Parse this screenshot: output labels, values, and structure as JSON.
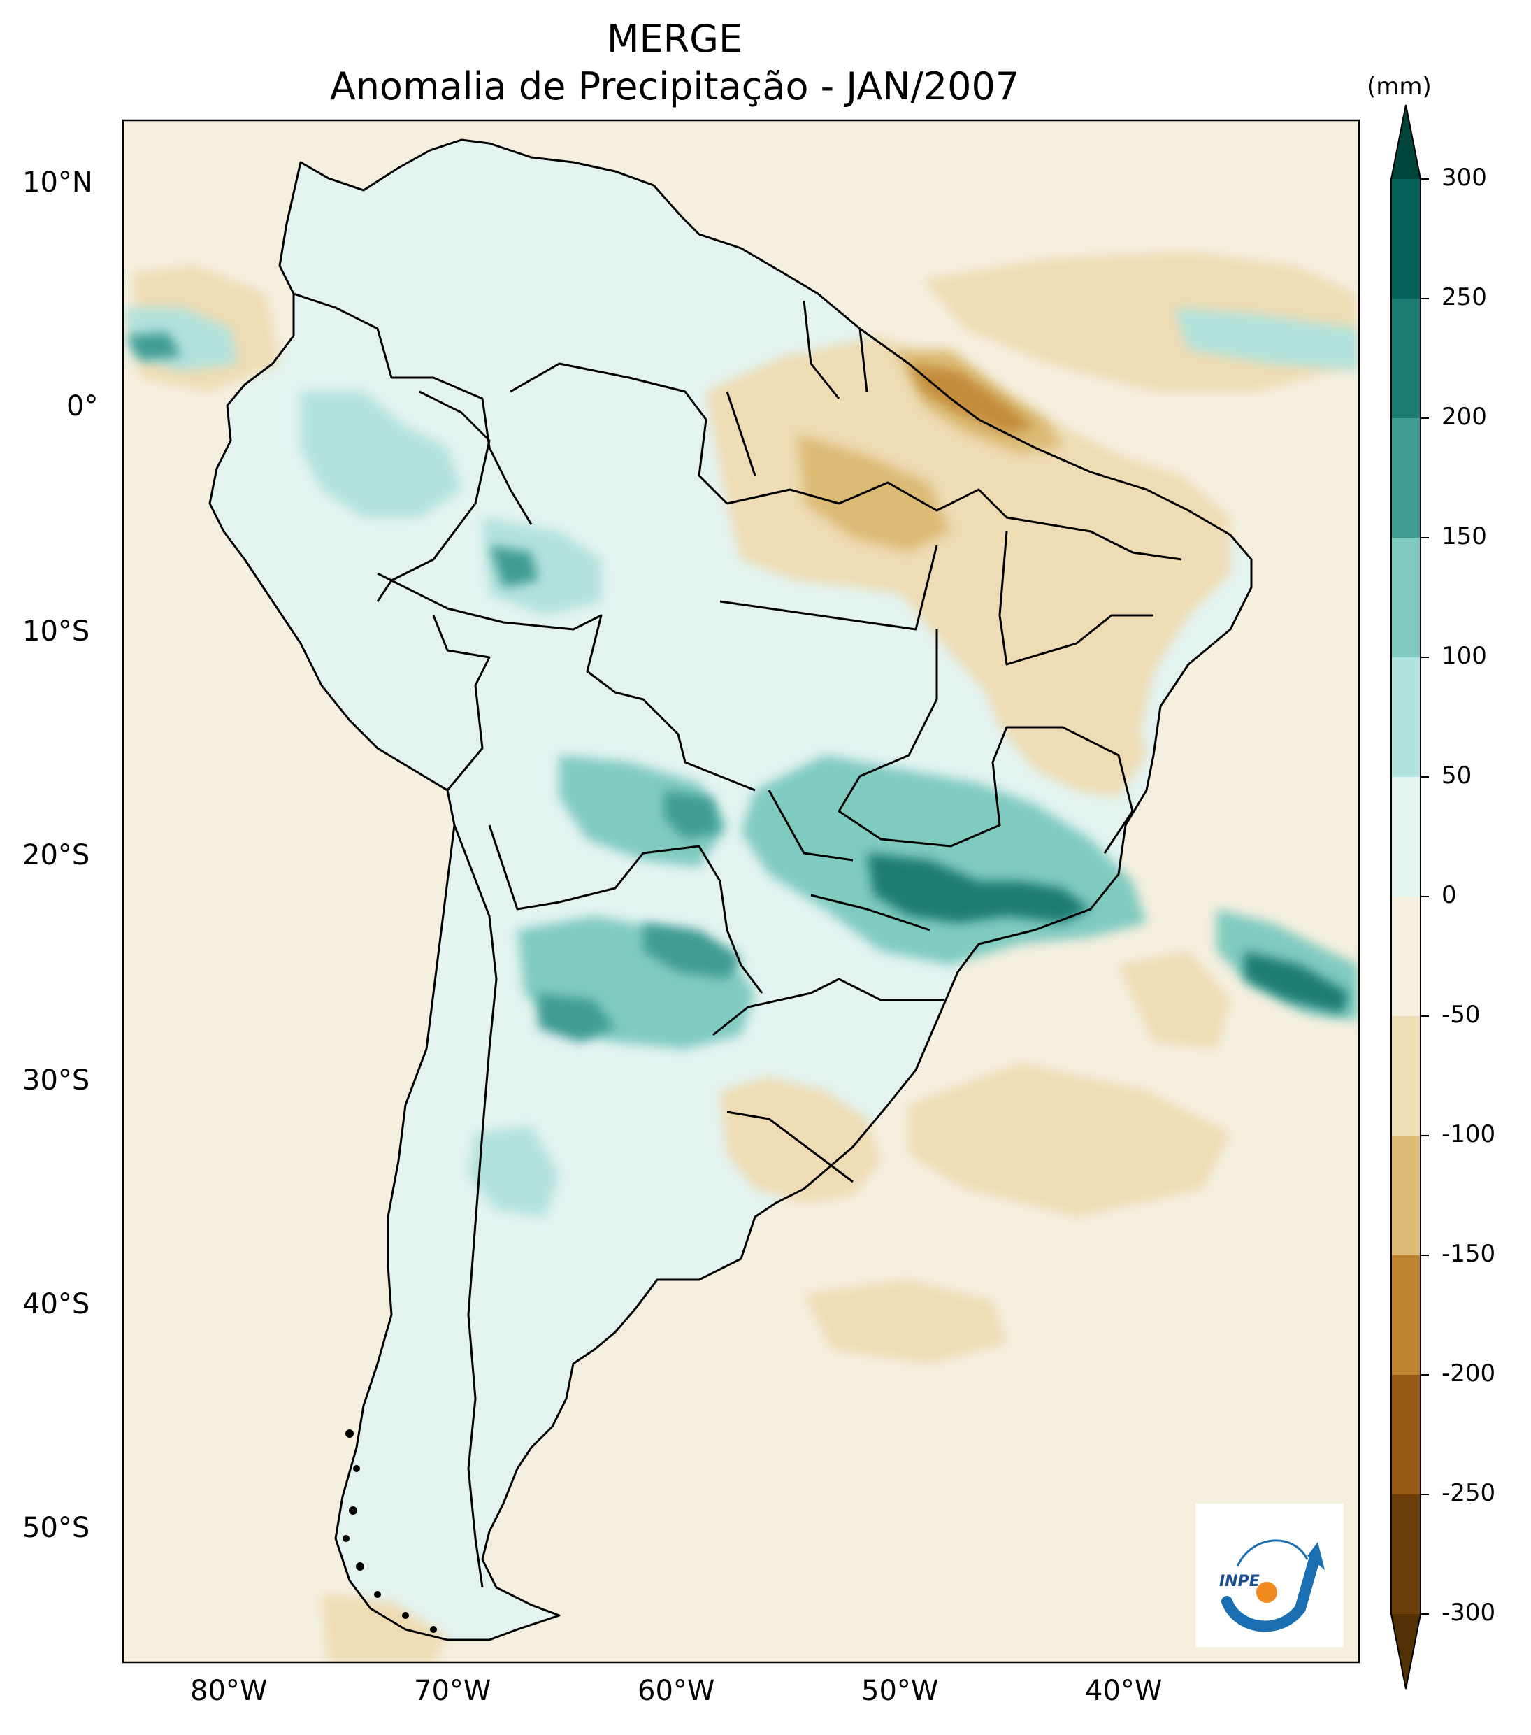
{
  "title": "MERGE",
  "subtitle": "Anomalia de Precipitação - JAN/2007",
  "units": "(mm)",
  "logo_text": "INPE",
  "map_axes": {
    "lon_range": [
      -85,
      -30
    ],
    "lat_range": [
      -56,
      13
    ],
    "lon_ticks": [
      "80°W",
      "70°W",
      "60°W",
      "50°W",
      "40°W"
    ],
    "lat_ticks": [
      "10°N",
      "0°",
      "10°S",
      "20°S",
      "30°S",
      "40°S",
      "50°S"
    ]
  },
  "colorbar": {
    "labels": [
      "300",
      "250",
      "200",
      "150",
      "100",
      "50",
      "0",
      "-50",
      "-100",
      "-150",
      "-200",
      "-250",
      "-300"
    ],
    "colors_top_to_bottom": [
      "#01443c",
      "#03605a",
      "#1b7b73",
      "#3f9c94",
      "#80cbc0",
      "#b2e2dc",
      "#e3f3f0",
      "#f5efe0",
      "#eedcb4",
      "#dcbb75",
      "#bf8430",
      "#975a16",
      "#6b3e0a"
    ],
    "extend_top_color": "#01443c",
    "extend_bottom_color": "#543005"
  },
  "colors": {
    "ocean_base": "#f4efdf",
    "land_base": "#e3f3f0",
    "wet": "#80cbc0",
    "very_wet": "#1b7b73",
    "dry": "#eedcb4",
    "very_dry": "#bf8430"
  }
}
